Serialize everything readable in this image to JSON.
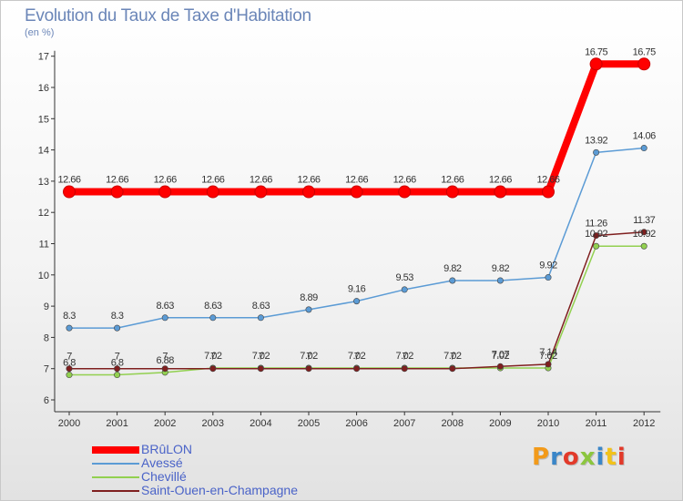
{
  "title": "Evolution du Taux de Taxe d'Habitation",
  "subtitle": "(en %)",
  "logo": {
    "text": "Proxiti",
    "colors": [
      "#f29a1a",
      "#3a86c8",
      "#e23a2a",
      "#8cc63f",
      "#3a86c8",
      "#f2c21a",
      "#e23a2a"
    ]
  },
  "chart_data": {
    "type": "line",
    "x": [
      "2000",
      "2001",
      "2002",
      "2003",
      "2004",
      "2005",
      "2006",
      "2007",
      "2008",
      "2009",
      "2010",
      "2011",
      "2012"
    ],
    "ylim": [
      6,
      17
    ],
    "yticks": [
      "6",
      "7",
      "8",
      "9",
      "10",
      "11",
      "12",
      "13",
      "14",
      "15",
      "16",
      "17"
    ],
    "grid": false,
    "legend_position": "bottom-left",
    "series": [
      {
        "name": "BRûLON",
        "color": "#ff0000",
        "labels": [
          "12.66",
          "12.66",
          "12.66",
          "12.66",
          "12.66",
          "12.66",
          "12.66",
          "12.66",
          "12.66",
          "12.66",
          "12.66",
          "16.75",
          "16.75"
        ],
        "values": [
          12.66,
          12.66,
          12.66,
          12.66,
          12.66,
          12.66,
          12.66,
          12.66,
          12.66,
          12.66,
          12.66,
          16.75,
          16.75
        ]
      },
      {
        "name": "Avessé",
        "color": "#5b9bd5",
        "labels": [
          "8.3",
          "8.3",
          "8.63",
          "8.63",
          "8.63",
          "8.89",
          "9.16",
          "9.53",
          "9.82",
          "9.82",
          "9.92",
          "13.92",
          "14.06"
        ],
        "values": [
          8.3,
          8.3,
          8.63,
          8.63,
          8.63,
          8.89,
          9.16,
          9.53,
          9.82,
          9.82,
          9.92,
          13.92,
          14.06
        ]
      },
      {
        "name": "Chevillé",
        "color": "#92d050",
        "labels": [
          "6.8",
          "6.8",
          "6.88",
          "7.02",
          "7.02",
          "7.02",
          "7.02",
          "7.02",
          "7.02",
          "7.02",
          "7.02",
          "10.92",
          "10.92"
        ],
        "values": [
          6.8,
          6.8,
          6.88,
          7.02,
          7.02,
          7.02,
          7.02,
          7.02,
          7.02,
          7.02,
          7.02,
          10.92,
          10.92
        ]
      },
      {
        "name": "Saint-Ouen-en-Champagne",
        "color": "#7f1f1f",
        "labels": [
          "7",
          "7",
          "7",
          "7",
          "7",
          "7",
          "7",
          "7",
          "7",
          "7.07",
          "7.14",
          "11.26",
          "11.37"
        ],
        "values": [
          7,
          7,
          7,
          7,
          7,
          7,
          7,
          7,
          7,
          7.07,
          7.14,
          11.26,
          11.37
        ]
      }
    ]
  }
}
